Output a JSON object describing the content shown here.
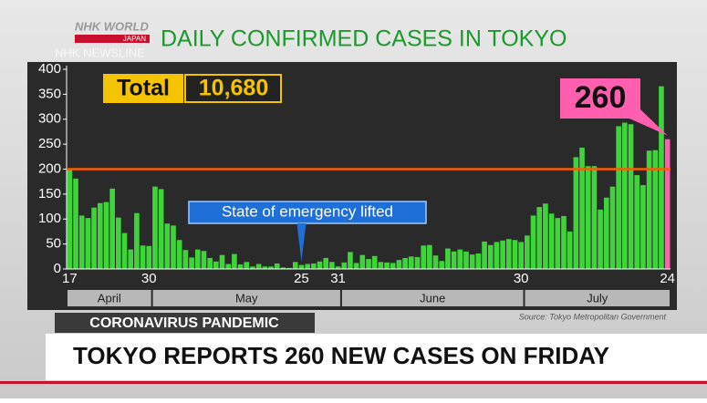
{
  "header": {
    "brand": "NHK WORLD",
    "brand_sub": "JAPAN",
    "program": "NHK NEWSLINE"
  },
  "chart_data": {
    "type": "bar",
    "title": "DAILY CONFIRMED CASES IN TOKYO",
    "total_label": "Total",
    "total": "10,680",
    "categories": [
      "17",
      null,
      null,
      null,
      null,
      null,
      null,
      null,
      null,
      null,
      null,
      null,
      null,
      "30",
      null,
      null,
      null,
      null,
      null,
      null,
      null,
      null,
      null,
      null,
      null,
      null,
      null,
      null,
      null,
      null,
      null,
      null,
      null,
      null,
      null,
      null,
      null,
      null,
      "25",
      null,
      null,
      null,
      null,
      null,
      "31",
      null,
      null,
      null,
      null,
      null,
      null,
      null,
      null,
      null,
      null,
      null,
      null,
      null,
      null,
      null,
      null,
      null,
      null,
      null,
      null,
      null,
      null,
      null,
      null,
      null,
      null,
      null,
      null,
      null,
      "30",
      null,
      null,
      null,
      null,
      null,
      null,
      null,
      null,
      null,
      null,
      null,
      null,
      null,
      null,
      null,
      null,
      null,
      null,
      null,
      null,
      null,
      null,
      null,
      "24"
    ],
    "months": [
      "April",
      "May",
      "June",
      "July"
    ],
    "series": [
      {
        "color": "#3ed43a",
        "last_color": "#ff5fae",
        "values": [
          201,
          181,
          107,
          102,
          123,
          132,
          134,
          161,
          103,
          72,
          39,
          112,
          47,
          46,
          165,
          160,
          91,
          87,
          58,
          38,
          23,
          39,
          36,
          22,
          15,
          28,
          10,
          30,
          9,
          14,
          5,
          10,
          5,
          5,
          11,
          3,
          2,
          14,
          8,
          10,
          11,
          15,
          22,
          14,
          5,
          13,
          34,
          12,
          28,
          20,
          26,
          14,
          13,
          12,
          18,
          22,
          25,
          24,
          47,
          48,
          27,
          16,
          41,
          35,
          39,
          35,
          29,
          31,
          55,
          48,
          54,
          57,
          60,
          58,
          54,
          67,
          107,
          124,
          131,
          111,
          102,
          106,
          75,
          224,
          243,
          206,
          206,
          119,
          143,
          165,
          286,
          293,
          290,
          188,
          168,
          237,
          238,
          366,
          260
        ]
      }
    ],
    "ylim": [
      0,
      400
    ],
    "yticks": [
      0,
      50,
      100,
      150,
      200,
      250,
      300,
      350,
      400
    ],
    "reference_line": 200,
    "reference_color": "#ff5a00",
    "annotation": "State of emergency lifted",
    "source": "Source: Tokyo Metropolitan Government"
  },
  "ticker": {
    "topic": "CORONAVIRUS PANDEMIC",
    "headline": "TOKYO REPORTS 260 NEW CASES ON FRIDAY"
  }
}
